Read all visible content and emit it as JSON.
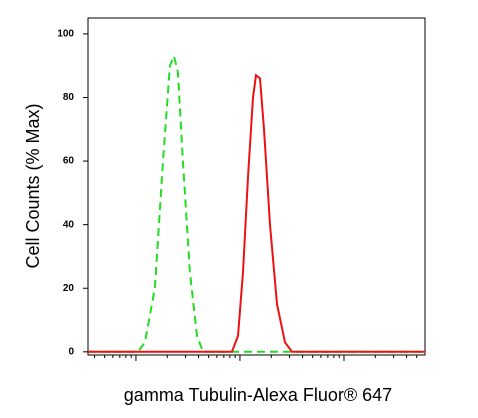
{
  "chart_data": {
    "type": "line",
    "ylabel": "Cell Counts (% Max)",
    "xlabel": "gamma Tubulin-Alexa Fluor® 647",
    "xscale": "log",
    "xlim": [
      34.6,
      60100
    ],
    "ylim": [
      -1,
      105
    ],
    "yticks": [
      0,
      20,
      40,
      60,
      80,
      100
    ],
    "xticks": [
      100,
      1000,
      10000
    ],
    "xminor_ticks": [
      40,
      50,
      60,
      70,
      80,
      90,
      200,
      300,
      400,
      500,
      600,
      700,
      800,
      900,
      2000,
      3000,
      4000,
      5000,
      6000,
      7000,
      8000,
      9000,
      20000,
      30000,
      40000,
      50000
    ],
    "series": [
      {
        "color": "#22dd22",
        "dashed": true,
        "x": [
          34.6,
          104.5,
          122,
          152,
          182,
          212,
          232,
          253,
          283,
          330,
          386,
          441,
          1557,
          7330,
          60100
        ],
        "values": [
          0,
          0,
          3,
          20,
          60,
          90,
          93,
          88,
          60,
          25,
          5,
          0,
          0,
          0,
          0
        ]
      },
      {
        "color": "#ee1111",
        "dashed": false,
        "x": [
          34.6,
          837,
          957,
          1069,
          1194,
          1334,
          1425,
          1557,
          1702,
          1943,
          2270,
          2710,
          3162,
          60100
        ],
        "values": [
          0,
          0,
          5,
          25,
          55,
          80,
          87,
          86,
          70,
          40,
          15,
          3,
          0,
          0
        ]
      }
    ]
  }
}
